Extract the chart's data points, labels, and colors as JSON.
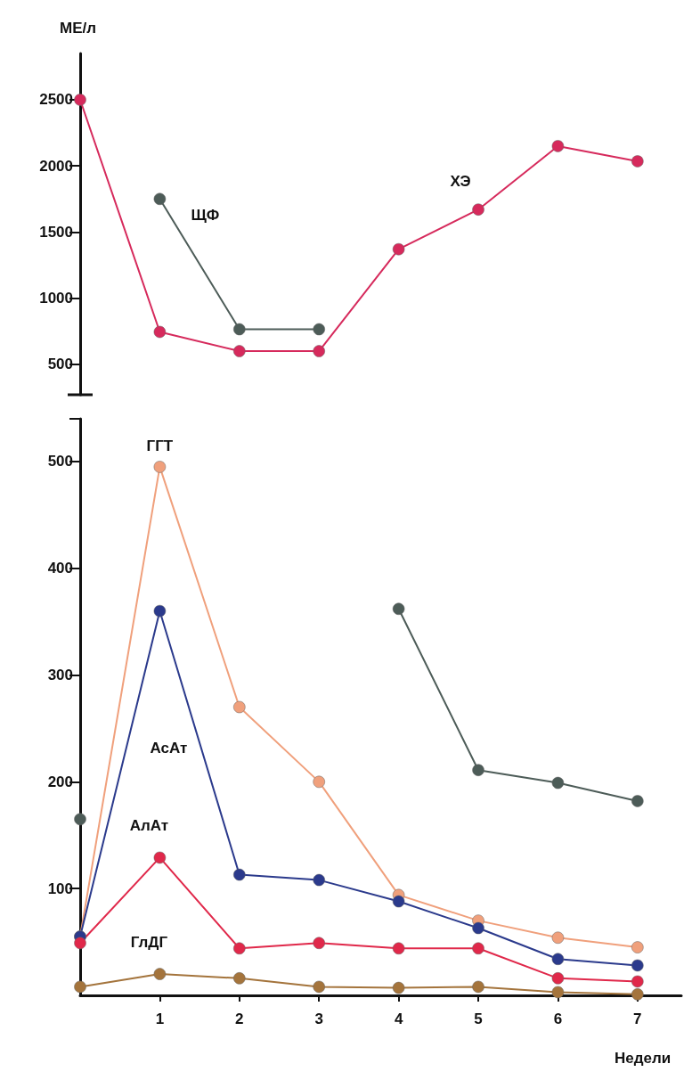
{
  "chart_data": [
    {
      "type": "line",
      "ylabel": "МЕ/л",
      "x": [
        0,
        1,
        2,
        3,
        4,
        5,
        6,
        7
      ],
      "ylim": [
        270,
        2850
      ],
      "yticks": [
        500,
        1000,
        1500,
        2000,
        2500
      ],
      "tick_labels": "y",
      "marker": "circle",
      "line_style": "solid",
      "series": [
        {
          "name": "ХЭ",
          "color": "#d62a5c",
          "values": [
            2500,
            745,
            600,
            600,
            1370,
            1670,
            2150,
            2035
          ]
        },
        {
          "name": "ЩФ",
          "color": "#4d5c58",
          "values": [
            null,
            1750,
            765,
            765,
            null,
            null,
            null,
            null
          ]
        }
      ]
    },
    {
      "type": "line",
      "xlabel": "Недели",
      "x": [
        0,
        1,
        2,
        3,
        4,
        5,
        6,
        7
      ],
      "xlim": [
        0,
        7.55
      ],
      "xticks": [
        1,
        2,
        3,
        4,
        5,
        6,
        7
      ],
      "ylim": [
        0,
        540
      ],
      "yticks": [
        100,
        200,
        300,
        400,
        500,
        {
          "value": 540,
          "label": null
        }
      ],
      "marker": "circle",
      "line_style": "solid",
      "series": [
        {
          "color": "#4d5c58",
          "values": [
            165,
            null,
            null,
            null,
            362,
            211,
            199,
            182
          ]
        },
        {
          "name": "ГГТ",
          "color": "#f0a07c",
          "values": [
            55,
            495,
            270,
            200,
            94,
            70,
            54,
            45
          ]
        },
        {
          "name": "АсАт",
          "color": "#2b3a8c",
          "values": [
            55,
            360,
            113,
            108,
            88,
            63,
            34,
            28
          ]
        },
        {
          "name": "АлАт",
          "color": "#e0284a",
          "values": [
            49,
            129,
            44,
            49,
            44,
            44,
            16,
            13
          ]
        },
        {
          "name": "ГлДГ",
          "color": "#a4743c",
          "values": [
            8,
            20,
            16,
            8,
            7,
            8,
            3,
            1
          ]
        }
      ]
    }
  ]
}
